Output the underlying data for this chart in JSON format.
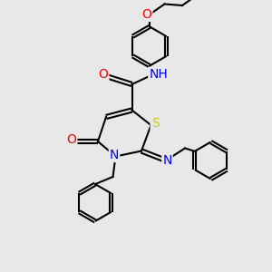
{
  "bg_color": "#e8e8e8",
  "atom_colors": {
    "C": "#000000",
    "N": "#0000ff",
    "O": "#ff0000",
    "S": "#cccc00",
    "H": "#00aaaa"
  },
  "bond_color": "#000000",
  "bond_width": 1.5,
  "font_size": 10,
  "figsize": [
    3.0,
    3.0
  ],
  "dpi": 100
}
